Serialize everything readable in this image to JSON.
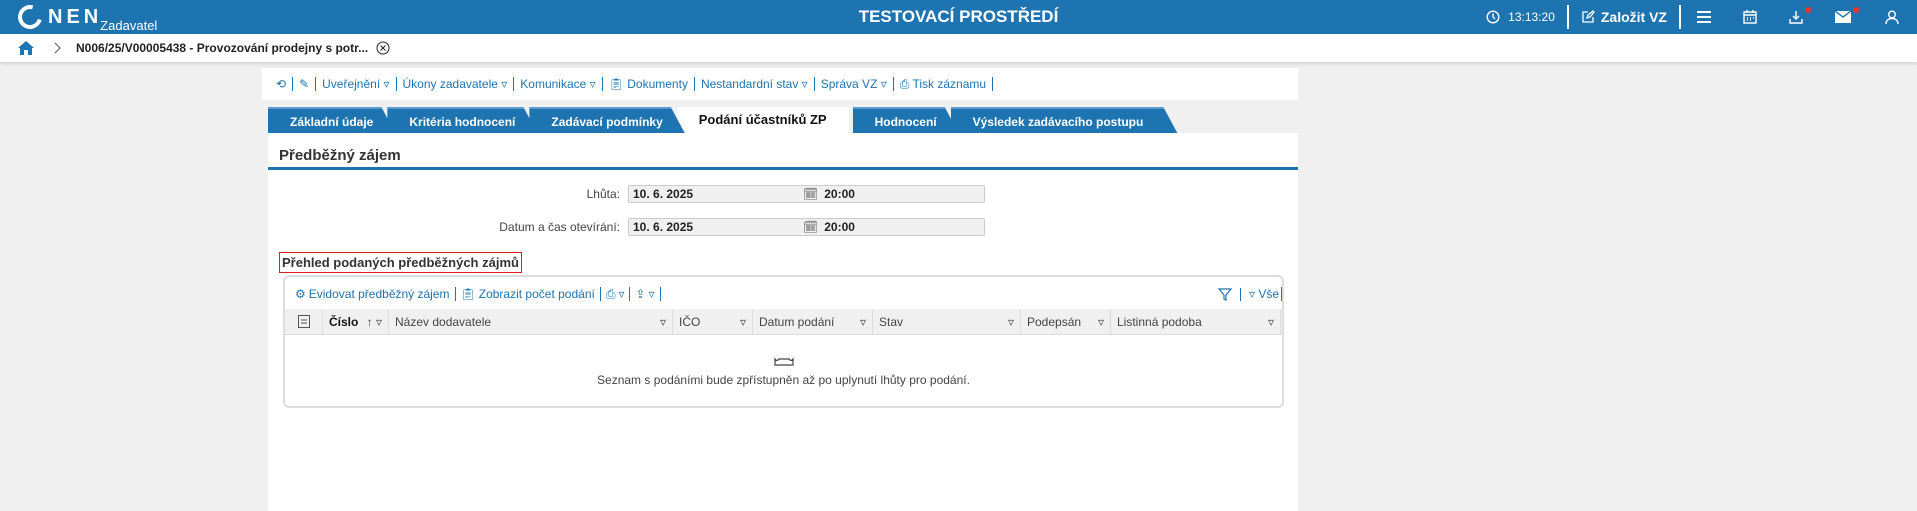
{
  "header": {
    "logo_text": "NEN",
    "logo_sub": "Zadavatel",
    "environment": "TESTOVACÍ PROSTŘEDÍ",
    "time": "13:13:20",
    "create_label": "Založit VZ",
    "accent": "#1e73b1"
  },
  "breadcrumb": {
    "title": "N006/25/V00005438 - Provozování prodejny s potr..."
  },
  "toolbar": {
    "items": [
      "Uveřejnění ▿",
      "Úkony zadavatele ▿",
      "Komunikace ▿",
      "Dokumenty",
      "Nestandardní stav ▿",
      "Správa VZ ▿",
      "Tisk záznamu"
    ]
  },
  "tabs": [
    "Základní údaje",
    "Kritéria hodnocení",
    "Zadávací podmínky",
    "Podání účastníků ZP",
    "Hodnocení",
    "Výsledek zadávacího postupu"
  ],
  "panel": {
    "title": "Předběžný zájem",
    "fields": [
      {
        "label": "Lhůta:",
        "date": "10. 6. 2025",
        "time": "20:00"
      },
      {
        "label": "Datum a čas otevírání:",
        "date": "10. 6. 2025",
        "time": "20:00"
      }
    ],
    "section": "Přehled podaných předběžných zájmů",
    "grid": {
      "actions": [
        "Evidovat předběžný zájem",
        "Zobrazit počet podání"
      ],
      "filter_all": "Vše",
      "columns": [
        "Číslo",
        "Název dodavatele",
        "IČO",
        "Datum podání",
        "Stav",
        "Podepsán",
        "Listinná podoba"
      ],
      "empty": "Seznam s podáními bude zpřístupněn až po uplynutí lhůty pro podání."
    }
  }
}
